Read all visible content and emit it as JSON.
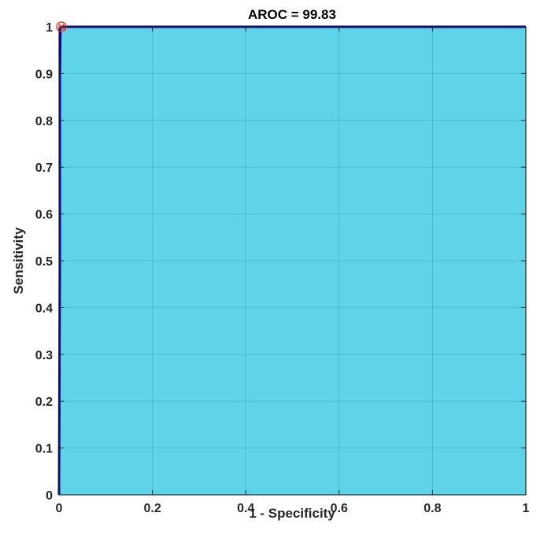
{
  "chart_data": {
    "type": "area",
    "title": "AROC = 99.83",
    "xlabel": "1 - Specificity",
    "ylabel": "Sensitivity",
    "xlim": [
      0,
      1
    ],
    "ylim": [
      0,
      1
    ],
    "x_ticks": [
      {
        "value": 0,
        "label": "0"
      },
      {
        "value": 0.2,
        "label": "0.2"
      },
      {
        "value": 0.4,
        "label": "0.4"
      },
      {
        "value": 0.6,
        "label": "0.6"
      },
      {
        "value": 0.8,
        "label": "0.8"
      },
      {
        "value": 1,
        "label": "1"
      }
    ],
    "y_ticks": [
      {
        "value": 0,
        "label": "0"
      },
      {
        "value": 0.1,
        "label": "0.1"
      },
      {
        "value": 0.2,
        "label": "0.2"
      },
      {
        "value": 0.3,
        "label": "0.3"
      },
      {
        "value": 0.4,
        "label": "0.4"
      },
      {
        "value": 0.5,
        "label": "0.5"
      },
      {
        "value": 0.6,
        "label": "0.6"
      },
      {
        "value": 0.7,
        "label": "0.7"
      },
      {
        "value": 0.8,
        "label": "0.8"
      },
      {
        "value": 0.9,
        "label": "0.9"
      },
      {
        "value": 1,
        "label": "1"
      }
    ],
    "grid": true,
    "series": [
      {
        "x": [
          0,
          0.0017,
          0.0017,
          0.003,
          0.005,
          0.01,
          1
        ],
        "y": [
          0,
          0.5,
          0.9,
          0.995,
          1,
          1,
          1
        ]
      }
    ],
    "operating_point": {
      "x": 0.005,
      "y": 1
    },
    "colors": {
      "fill": "#5fd3e8",
      "line": "#00009a",
      "grid": "#2f8fa5",
      "marker": "#ff3b30",
      "axis": "#262626"
    }
  }
}
